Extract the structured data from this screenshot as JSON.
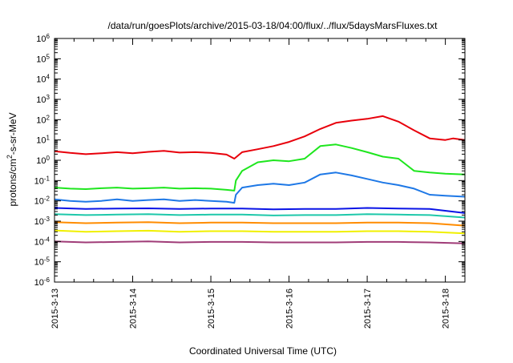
{
  "chart_data": {
    "type": "line",
    "title": "/data/run/goesPlots/archive/2015-03-18/04:00/flux/../flux/5daysMarsFluxes.txt",
    "xlabel": "Coordinated Universal Time (UTC)",
    "ylabel": {
      "base": "protons/cm",
      "sup": "2",
      "rest": "-s-sr-MeV"
    },
    "x_unit": "days from 2015-03-13 00:00 UTC",
    "xlim": [
      0,
      5.25
    ],
    "x_ticks": [
      {
        "value": 0,
        "label": "2015-3-13"
      },
      {
        "value": 1,
        "label": "2015-3-14"
      },
      {
        "value": 2,
        "label": "2015-3-15"
      },
      {
        "value": 3,
        "label": "2015-3-16"
      },
      {
        "value": 4,
        "label": "2015-3-17"
      },
      {
        "value": 5,
        "label": "2015-3-18"
      }
    ],
    "y_scale": "log",
    "ylim": [
      1e-06,
      1000000.0
    ],
    "y_ticks": [
      {
        "value": 1e-06,
        "base": "10",
        "exp": "-6"
      },
      {
        "value": 1e-05,
        "base": "10",
        "exp": "-5"
      },
      {
        "value": 0.0001,
        "base": "10",
        "exp": "-4"
      },
      {
        "value": 0.001,
        "base": "10",
        "exp": "-3"
      },
      {
        "value": 0.01,
        "base": "10",
        "exp": "-2"
      },
      {
        "value": 0.1,
        "base": "10",
        "exp": "-1"
      },
      {
        "value": 1,
        "base": "10",
        "exp": "0"
      },
      {
        "value": 10.0,
        "base": "10",
        "exp": "1"
      },
      {
        "value": 100.0,
        "base": "10",
        "exp": "2"
      },
      {
        "value": 1000.0,
        "base": "10",
        "exp": "3"
      },
      {
        "value": 10000.0,
        "base": "10",
        "exp": "4"
      },
      {
        "value": 100000.0,
        "base": "10",
        "exp": "5"
      },
      {
        "value": 1000000.0,
        "base": "10",
        "exp": "6"
      }
    ],
    "grid": false,
    "series": [
      {
        "color": "#e8000b",
        "x": [
          0,
          0.2,
          0.4,
          0.6,
          0.8,
          1.0,
          1.2,
          1.4,
          1.6,
          1.8,
          2.0,
          2.2,
          2.3,
          2.4,
          2.6,
          2.8,
          3.0,
          3.2,
          3.4,
          3.6,
          3.8,
          4.0,
          4.2,
          4.4,
          4.6,
          4.8,
          5.0,
          5.1,
          5.25
        ],
        "y": [
          2.8,
          2.3,
          2.0,
          2.2,
          2.5,
          2.2,
          2.6,
          2.9,
          2.4,
          2.5,
          2.3,
          1.9,
          1.2,
          2.5,
          3.5,
          5.0,
          8.0,
          15,
          35,
          70,
          90,
          110,
          150,
          80,
          30,
          12,
          10,
          12,
          10
        ]
      },
      {
        "color": "#1ee61e",
        "x": [
          0,
          0.2,
          0.4,
          0.6,
          0.8,
          1.0,
          1.2,
          1.4,
          1.6,
          1.8,
          2.0,
          2.2,
          2.3,
          2.32,
          2.4,
          2.6,
          2.8,
          3.0,
          3.2,
          3.4,
          3.6,
          3.8,
          4.0,
          4.2,
          4.4,
          4.6,
          4.8,
          5.0,
          5.25
        ],
        "y": [
          0.045,
          0.04,
          0.038,
          0.042,
          0.045,
          0.04,
          0.042,
          0.045,
          0.04,
          0.042,
          0.04,
          0.035,
          0.032,
          0.1,
          0.3,
          0.8,
          1.0,
          0.9,
          1.2,
          5.0,
          6.0,
          4.0,
          2.5,
          1.5,
          1.2,
          0.3,
          0.25,
          0.22,
          0.2
        ]
      },
      {
        "color": "#1e78e6",
        "x": [
          0,
          0.2,
          0.4,
          0.6,
          0.8,
          1.0,
          1.2,
          1.4,
          1.6,
          1.8,
          2.0,
          2.2,
          2.3,
          2.32,
          2.4,
          2.6,
          2.8,
          3.0,
          3.2,
          3.4,
          3.6,
          3.8,
          4.0,
          4.2,
          4.4,
          4.6,
          4.8,
          5.0,
          5.25
        ],
        "y": [
          0.012,
          0.01,
          0.009,
          0.01,
          0.012,
          0.01,
          0.011,
          0.012,
          0.01,
          0.011,
          0.01,
          0.009,
          0.008,
          0.02,
          0.045,
          0.06,
          0.07,
          0.06,
          0.08,
          0.2,
          0.25,
          0.18,
          0.12,
          0.08,
          0.06,
          0.04,
          0.02,
          0.018,
          0.016
        ]
      },
      {
        "color": "#0a14e6",
        "x": [
          0,
          0.4,
          0.8,
          1.2,
          1.6,
          2.0,
          2.4,
          2.8,
          3.2,
          3.6,
          4.0,
          4.4,
          4.8,
          5.25
        ],
        "y": [
          0.0045,
          0.004,
          0.0042,
          0.0043,
          0.004,
          0.0042,
          0.0042,
          0.0038,
          0.004,
          0.004,
          0.0045,
          0.0042,
          0.004,
          0.0025
        ]
      },
      {
        "color": "#1ec8aa",
        "x": [
          0,
          0.4,
          0.8,
          1.2,
          1.6,
          2.0,
          2.4,
          2.8,
          3.2,
          3.6,
          4.0,
          4.4,
          4.8,
          5.25
        ],
        "y": [
          0.0022,
          0.002,
          0.0021,
          0.0022,
          0.002,
          0.0021,
          0.0021,
          0.0019,
          0.002,
          0.002,
          0.0022,
          0.0021,
          0.002,
          0.0015
        ]
      },
      {
        "color": "#ff8c00",
        "x": [
          0,
          0.4,
          0.8,
          1.2,
          1.6,
          2.0,
          2.4,
          2.8,
          3.2,
          3.6,
          4.0,
          4.4,
          4.8,
          5.25
        ],
        "y": [
          0.0009,
          0.0008,
          0.00085,
          0.0009,
          0.0008,
          0.00085,
          0.00085,
          0.0008,
          0.0008,
          0.0008,
          0.00085,
          0.00085,
          0.0008,
          0.0006
        ]
      },
      {
        "color": "#f0f000",
        "x": [
          0,
          0.4,
          0.8,
          1.2,
          1.6,
          2.0,
          2.4,
          2.8,
          3.2,
          3.6,
          4.0,
          4.4,
          4.8,
          5.25
        ],
        "y": [
          0.00035,
          0.0003,
          0.00032,
          0.00034,
          0.0003,
          0.00032,
          0.00032,
          0.0003,
          0.0003,
          0.0003,
          0.00032,
          0.00032,
          0.0003,
          0.00025
        ]
      },
      {
        "color": "#a03c78",
        "x": [
          0,
          0.4,
          0.8,
          1.2,
          1.6,
          2.0,
          2.4,
          2.8,
          3.2,
          3.6,
          4.0,
          4.4,
          4.8,
          5.25
        ],
        "y": [
          0.0001,
          9e-05,
          9.5e-05,
          0.0001,
          9e-05,
          9.5e-05,
          9.5e-05,
          9e-05,
          9e-05,
          9e-05,
          9.5e-05,
          9.5e-05,
          9e-05,
          8e-05
        ]
      }
    ]
  }
}
